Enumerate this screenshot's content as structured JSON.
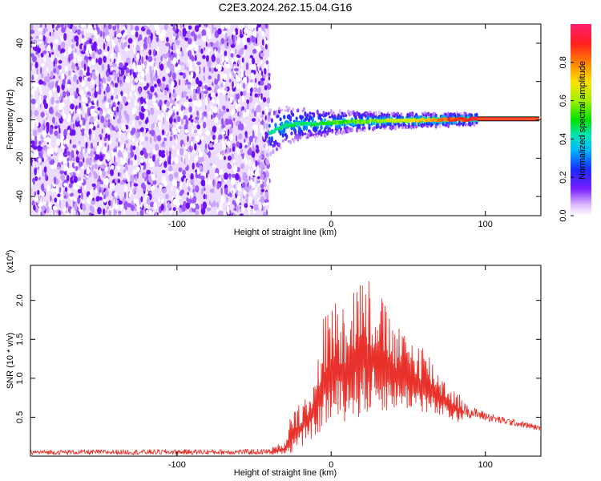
{
  "title": "C2E3.2024.262.15.04.G16",
  "chart_data": [
    {
      "type": "heatmap",
      "xlabel": "Height of straight line (km)",
      "ylabel": "Frequency (Hz)",
      "xlim": [
        -195,
        136
      ],
      "ylim": [
        -50,
        50
      ],
      "xticks": [
        -100,
        0,
        100
      ],
      "yticks": [
        -40,
        -20,
        0,
        20,
        40
      ],
      "noise_region_x": [
        -195,
        -40
      ],
      "signal_trace": {
        "x": [
          -40,
          -35,
          -30,
          -20,
          -10,
          0,
          10,
          20,
          30,
          40,
          50,
          60,
          70,
          80,
          90,
          95
        ],
        "freq": [
          -7,
          -5,
          -3,
          -2,
          -2,
          -1.5,
          -1,
          -1,
          -0.5,
          -0.5,
          -0.3,
          0,
          0,
          0.2,
          0.3,
          0.5
        ]
      },
      "constant_line": {
        "x": [
          95,
          135
        ],
        "freq": 0.5
      },
      "colorbar": {
        "label": "Normalized spectral amplitude",
        "range": [
          0,
          1
        ],
        "ticks": [
          "0.0",
          "0.2",
          "0.4",
          "0.6",
          "0.8"
        ],
        "tick_values": [
          0,
          0.2,
          0.4,
          0.6,
          0.8
        ]
      }
    },
    {
      "type": "line",
      "xlabel": "Height of straight line (km)",
      "ylabel": "SNR (10 * v/v)",
      "scale_label": "(x10",
      "scale_exp": "4",
      "xlim": [
        -195,
        136
      ],
      "ylim": [
        0,
        2.45
      ],
      "xticks": [
        -100,
        0,
        100
      ],
      "yticks": [
        0.5,
        1.0,
        1.5,
        2.0
      ],
      "ytick_labels": [
        "0.5",
        "1.0",
        "1.5",
        "2.0"
      ],
      "series": [
        {
          "color": "#e8312a",
          "envelope": {
            "x": [
              -195,
              -40,
              -30,
              -25,
              -20,
              -15,
              -10,
              -5,
              0,
              10,
              20,
              30,
              40,
              50,
              60,
              70,
              80,
              90,
              100,
              110,
              120,
              130,
              136
            ],
            "upper": [
              0.08,
              0.09,
              0.2,
              0.65,
              0.7,
              0.9,
              1.05,
              1.8,
              2.0,
              2.1,
              2.4,
              2.2,
              1.7,
              1.55,
              1.45,
              1.1,
              0.85,
              0.7,
              0.62,
              0.55,
              0.5,
              0.45,
              0.4
            ],
            "lower": [
              0.02,
              0.02,
              0.02,
              0.05,
              0.1,
              0.2,
              0.25,
              0.35,
              0.4,
              0.45,
              0.5,
              0.55,
              0.6,
              0.6,
              0.55,
              0.5,
              0.45,
              0.4,
              0.38,
              0.35,
              0.33,
              0.3,
              0.3
            ]
          }
        }
      ]
    }
  ]
}
